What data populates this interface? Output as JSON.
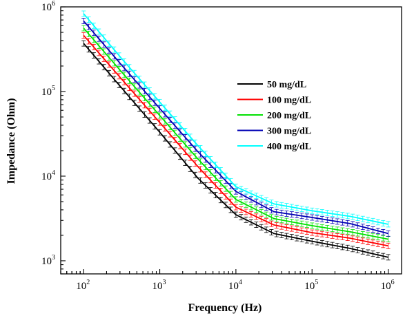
{
  "chart_data": {
    "type": "line",
    "scale": {
      "x": "log",
      "y": "log"
    },
    "title": "",
    "xlabel": "Frequency (Hz)",
    "ylabel": "Impedance (Ohm)",
    "xlim": [
      50,
      1500000
    ],
    "ylim": [
      700,
      1000000
    ],
    "x_ticks": [
      {
        "base": "10",
        "exp": "2",
        "value": 100
      },
      {
        "base": "10",
        "exp": "3",
        "value": 1000
      },
      {
        "base": "10",
        "exp": "4",
        "value": 10000
      },
      {
        "base": "10",
        "exp": "5",
        "value": 100000
      },
      {
        "base": "10",
        "exp": "6",
        "value": 1000000
      }
    ],
    "y_ticks": [
      {
        "base": "10",
        "exp": "3",
        "value": 1000
      },
      {
        "base": "10",
        "exp": "4",
        "value": 10000
      },
      {
        "base": "10",
        "exp": "5",
        "value": 100000
      },
      {
        "base": "10",
        "exp": "6",
        "value": 1000000
      }
    ],
    "grid": false,
    "error_bars": true,
    "legend_position": "upper-right",
    "x": [
      100,
      316,
      1000,
      3162,
      10000,
      31623,
      100000,
      316228,
      1000000
    ],
    "series": [
      {
        "name": "50 mg/dL",
        "color": "#000000",
        "values": [
          370000,
          110000,
          33000,
          9500,
          3500,
          2100,
          1700,
          1400,
          1100
        ]
      },
      {
        "name": "100 mg/dL",
        "color": "#ff0000",
        "values": [
          460000,
          140000,
          43000,
          13000,
          4300,
          2650,
          2150,
          1850,
          1500
        ]
      },
      {
        "name": "200 mg/dL",
        "color": "#00e000",
        "values": [
          560000,
          170000,
          52000,
          16000,
          5300,
          3150,
          2600,
          2200,
          1800
        ]
      },
      {
        "name": "300 mg/dL",
        "color": "#0000b4",
        "values": [
          680000,
          205000,
          63000,
          19500,
          6600,
          3800,
          3250,
          2750,
          2100
        ]
      },
      {
        "name": "400 mg/dL",
        "color": "#00ffff",
        "values": [
          830000,
          245000,
          75000,
          23000,
          7500,
          4700,
          3900,
          3350,
          2700
        ]
      }
    ]
  }
}
